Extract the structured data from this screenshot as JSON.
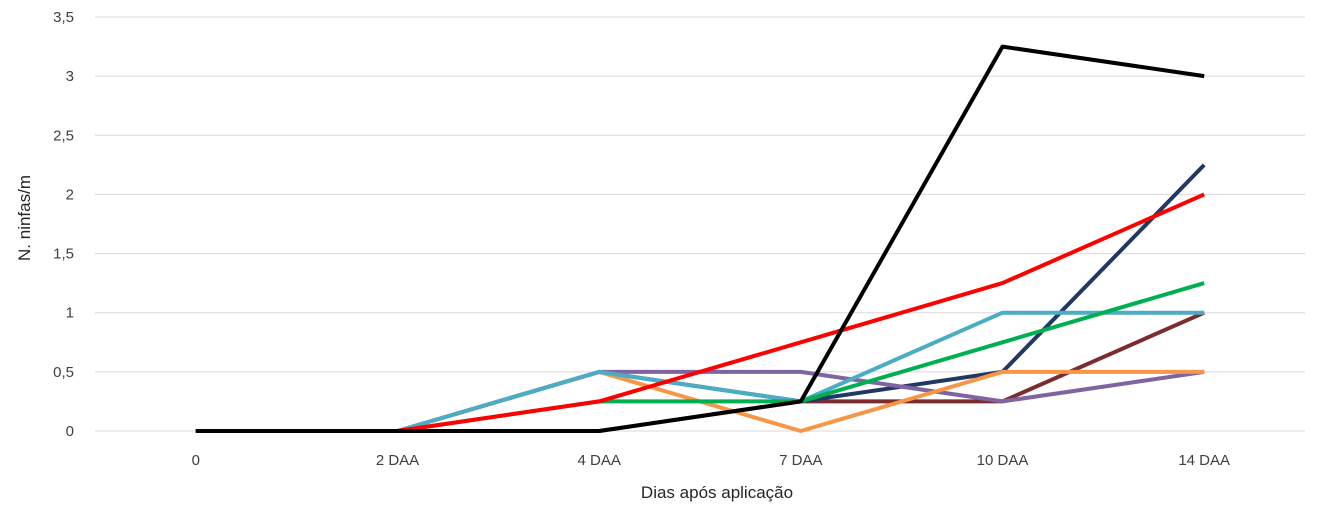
{
  "chart_data": {
    "type": "line",
    "categories": [
      "0",
      "2 DAA",
      "4 DAA",
      "7 DAA",
      "10 DAA",
      "14 DAA"
    ],
    "xlabel": "Dias após aplicação",
    "ylabel": "N. ninfas/m",
    "ylim": [
      0,
      3.5
    ],
    "yticks": [
      "0",
      "0,5",
      "1",
      "1,5",
      "2",
      "2,5",
      "3",
      "3,5"
    ],
    "grid": true,
    "legend": "none",
    "series": [
      {
        "color": "#000000",
        "values": [
          0,
          0,
          0,
          0.25,
          3.25,
          3.0
        ]
      },
      {
        "color": "#ff0000",
        "values": [
          0,
          0,
          0.25,
          0.75,
          1.25,
          2.0
        ]
      },
      {
        "color": "#00b050",
        "values": [
          0,
          0,
          0.25,
          0.25,
          0.75,
          1.25
        ]
      },
      {
        "color": "#4bacc6",
        "values": [
          0,
          0,
          0.5,
          0.25,
          1.0,
          1.0
        ]
      },
      {
        "color": "#f79646",
        "values": [
          0,
          0,
          0.5,
          0,
          0.5,
          0.5
        ]
      },
      {
        "color": "#8064a2",
        "values": [
          0,
          0,
          0.5,
          0.5,
          0.25,
          0.5
        ]
      },
      {
        "color": "#1f3864",
        "values": [
          0,
          0,
          0.5,
          0.25,
          0.5,
          2.25
        ]
      },
      {
        "color": "#7b2c2c",
        "values": [
          0,
          0,
          0,
          0.25,
          0.25,
          1.0
        ]
      }
    ]
  }
}
